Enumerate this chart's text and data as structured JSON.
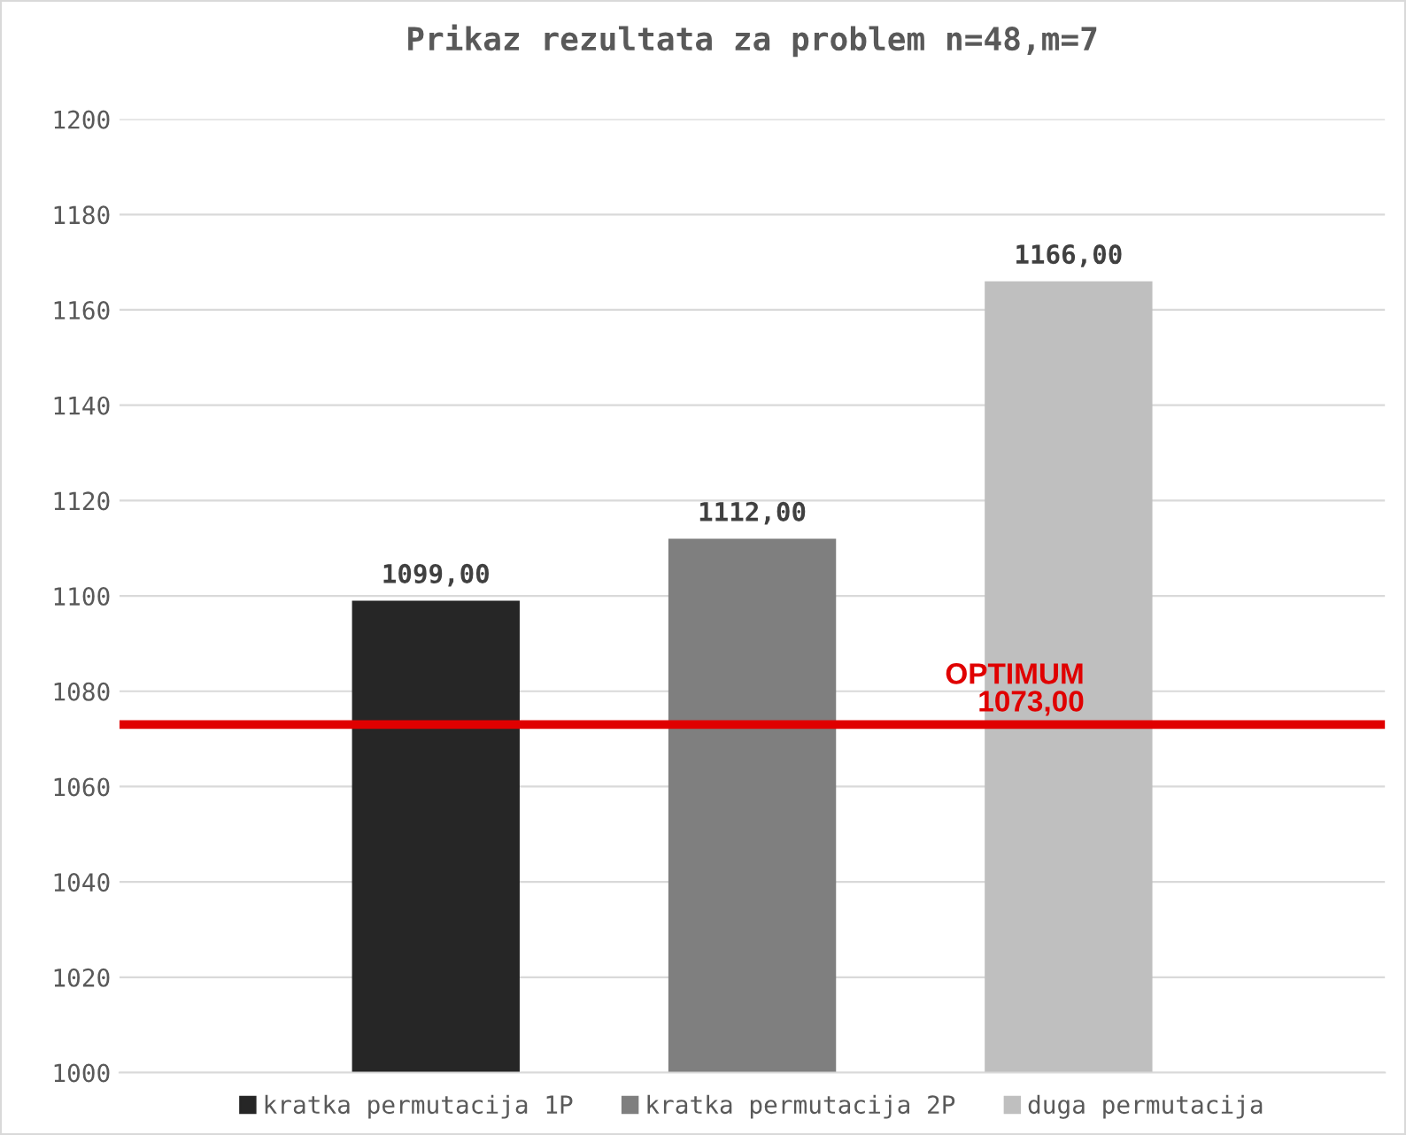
{
  "chart_data": {
    "type": "bar",
    "title": "Prikaz rezultata za problem n=48,m=7",
    "categories": [
      null
    ],
    "series": [
      {
        "name": "kratka permutacija 1P",
        "color": "#262626",
        "values": [
          1099
        ],
        "value_labels": [
          "1099,00"
        ]
      },
      {
        "name": "kratka permutacija 2P",
        "color": "#7f7f7f",
        "values": [
          1112
        ],
        "value_labels": [
          "1112,00"
        ]
      },
      {
        "name": "duga permutacija",
        "color": "#bfbfbf",
        "values": [
          1166
        ],
        "value_labels": [
          "1166,00"
        ]
      }
    ],
    "ylim": [
      1000,
      1200
    ],
    "yticks": [
      1000,
      1020,
      1040,
      1060,
      1080,
      1100,
      1120,
      1140,
      1160,
      1180,
      1200
    ],
    "ref_lines": [
      {
        "axis": "y",
        "value": 1073,
        "label": "OPTIMUM\n1073,00",
        "color": "#e00000"
      }
    ],
    "grid": "y",
    "legend": "bottom"
  }
}
